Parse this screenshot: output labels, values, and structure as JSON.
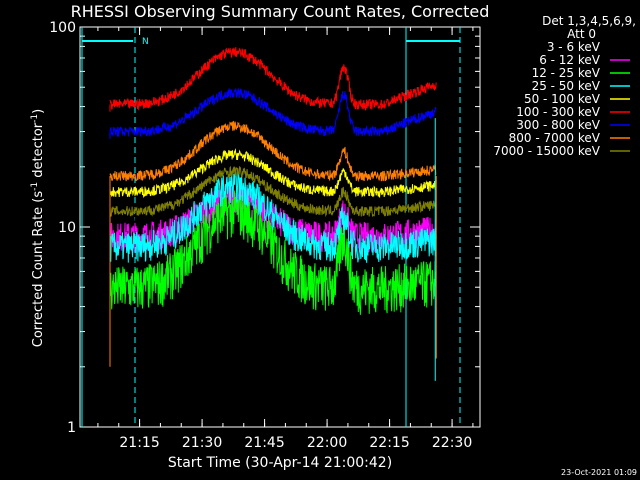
{
  "chart_data": {
    "type": "line",
    "title": "RHESSI Observing Summary Count Rates, Corrected",
    "xlabel": "Start Time (30-Apr-14 21:00:42)",
    "ylabel_main": "Corrected Count Rate (s",
    "ylabel_sup1": "-1",
    "ylabel_mid": " detector",
    "ylabel_sup2": "-1",
    "ylabel_end": ")",
    "yscale": "log",
    "ylim": [
      1,
      100
    ],
    "xlim_minutes": [
      0,
      96
    ],
    "x_tick_labels": [
      "21:15",
      "21:30",
      "21:45",
      "22:00",
      "22:15",
      "22:30"
    ],
    "y_tick_labels": [
      "1",
      "10",
      "100"
    ],
    "legend_header1": "Det 1,3,4,5,6,9,",
    "legend_header2": "Att 0",
    "flag_label": "N",
    "timestamp": "23-Oct-2021 01:09",
    "series": [
      {
        "name": "3 - 6 keV",
        "color": "#000000",
        "base": 11,
        "peak": 16,
        "flare": 3
      },
      {
        "name": "6 - 12 keV",
        "color": "#ff00ff",
        "base": 9,
        "peak": 14,
        "flare": 3
      },
      {
        "name": "12 - 25 keV",
        "color": "#00ff00",
        "base": 5,
        "peak": 12,
        "flare": 4
      },
      {
        "name": "25 - 50 keV",
        "color": "#00ffff",
        "base": 8,
        "peak": 16,
        "flare": 3
      },
      {
        "name": "50 - 100 keV",
        "color": "#ffff00",
        "base": 15,
        "peak": 23,
        "flare": 4
      },
      {
        "name": "100 - 300 keV",
        "color": "#ff0000",
        "base": 41,
        "peak": 75,
        "flare": 22
      },
      {
        "name": "300 - 800 keV",
        "color": "#0000ff",
        "base": 30,
        "peak": 47,
        "flare": 16
      },
      {
        "name": "800 - 7000 keV",
        "color": "#ff8000",
        "base": 18,
        "peak": 32,
        "flare": 6
      },
      {
        "name": "7000 - 15000 keV",
        "color": "#808000",
        "base": 12,
        "peak": 19,
        "flare": 3
      }
    ]
  }
}
